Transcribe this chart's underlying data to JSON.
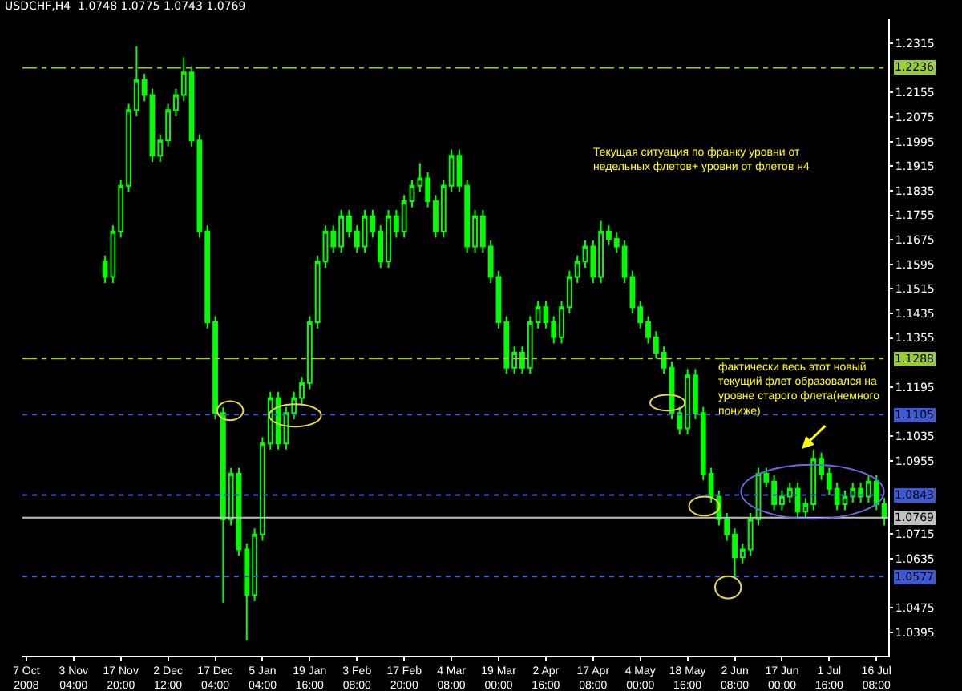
{
  "chart_data": {
    "type": "candlestick",
    "title": "USDCHF,H4  1.0748 1.0775 1.0743 1.0769",
    "color": "#00ff00",
    "categories": [
      "7 Oct 2008",
      null,
      null,
      null,
      null,
      null,
      "3 Nov 04:00",
      null,
      null,
      null,
      null,
      null,
      "17 Nov 20:00",
      null,
      null,
      null,
      null,
      null,
      "2 Dec 12:00",
      null,
      null,
      null,
      null,
      null,
      "17 Dec 04:00",
      null,
      null,
      null,
      null,
      null,
      "5 Jan 04:00",
      null,
      null,
      null,
      null,
      null,
      "19 Jan 16:00",
      null,
      null,
      null,
      null,
      null,
      "3 Feb 08:00",
      null,
      null,
      null,
      null,
      null,
      "17 Feb 20:00",
      null,
      null,
      null,
      null,
      null,
      "4 Mar 08:00",
      null,
      null,
      null,
      null,
      null,
      "19 Mar 00:00",
      null,
      null,
      null,
      null,
      null,
      "2 Apr 16:00",
      null,
      null,
      null,
      null,
      null,
      "17 Apr 08:00",
      null,
      null,
      null,
      null,
      null,
      "4 May 00:00",
      null,
      null,
      null,
      null,
      null,
      "18 May 16:00",
      null,
      null,
      null,
      null,
      null,
      "2 Jun 08:00",
      null,
      null,
      null,
      null,
      null,
      "17 Jun 00:00",
      null,
      null,
      null,
      null,
      null,
      "1 Jul 16:00",
      null,
      null,
      null,
      null,
      null,
      "16 Jul 08:00",
      null
    ],
    "ohlc": [
      null,
      null,
      null,
      null,
      null,
      null,
      null,
      null,
      null,
      null,
      [
        1.1604,
        1.1624,
        1.1534,
        1.1554
      ],
      [
        1.1554,
        1.1722,
        1.1534,
        1.1702
      ],
      [
        1.1702,
        1.1871,
        1.1682,
        1.1851
      ],
      [
        1.1851,
        1.2118,
        1.1831,
        1.2098
      ],
      [
        1.2098,
        1.2305,
        1.2078,
        1.2196
      ],
      [
        1.2196,
        1.2216,
        1.2127,
        1.2147
      ],
      [
        1.2147,
        1.2167,
        1.1929,
        1.1949
      ],
      [
        1.1949,
        1.2019,
        1.1929,
        1.1999
      ],
      [
        1.1999,
        1.2118,
        1.1979,
        1.2098
      ],
      [
        1.2098,
        1.2167,
        1.2078,
        1.2147
      ],
      [
        1.2147,
        1.227,
        1.2127,
        1.2221
      ],
      [
        1.2221,
        1.2241,
        1.1979,
        1.1999
      ],
      [
        1.1999,
        1.2019,
        1.1682,
        1.1702
      ],
      [
        1.1702,
        1.1722,
        1.1386,
        1.1406
      ],
      [
        1.1406,
        1.1426,
        1.109,
        1.111
      ],
      [
        1.111,
        1.113,
        1.0492,
        1.0764
      ],
      [
        1.0764,
        1.0932,
        1.0744,
        1.0912
      ],
      [
        1.0912,
        1.0932,
        1.0645,
        1.0665
      ],
      [
        1.0665,
        1.0685,
        1.0369,
        1.0517
      ],
      [
        1.0517,
        1.0734,
        1.0497,
        1.0714
      ],
      [
        1.0714,
        1.1031,
        1.0694,
        1.1011
      ],
      [
        1.1011,
        1.1179,
        1.0991,
        1.1159
      ],
      [
        1.1159,
        1.1179,
        1.0991,
        1.1011
      ],
      [
        1.1011,
        1.113,
        1.0991,
        1.111
      ],
      [
        1.111,
        1.1179,
        1.109,
        1.1159
      ],
      [
        1.1159,
        1.1228,
        1.1139,
        1.1208
      ],
      [
        1.1208,
        1.1426,
        1.1188,
        1.1406
      ],
      [
        1.1406,
        1.1624,
        1.1386,
        1.1604
      ],
      [
        1.1604,
        1.1722,
        1.1584,
        1.1702
      ],
      [
        1.1702,
        1.1722,
        1.1633,
        1.1653
      ],
      [
        1.1653,
        1.1772,
        1.1633,
        1.1752
      ],
      [
        1.1752,
        1.1772,
        1.1682,
        1.1702
      ],
      [
        1.1702,
        1.1722,
        1.1633,
        1.1653
      ],
      [
        1.1653,
        1.1772,
        1.1633,
        1.1752
      ],
      [
        1.1752,
        1.1772,
        1.1682,
        1.1702
      ],
      [
        1.1702,
        1.1722,
        1.1584,
        1.1604
      ],
      [
        1.1604,
        1.1772,
        1.1584,
        1.1752
      ],
      [
        1.1752,
        1.1772,
        1.1682,
        1.1702
      ],
      [
        1.1702,
        1.1821,
        1.1682,
        1.1801
      ],
      [
        1.1801,
        1.1871,
        1.1781,
        1.1851
      ],
      [
        1.1851,
        1.1925,
        1.1831,
        1.1875
      ],
      [
        1.1875,
        1.1895,
        1.1781,
        1.1801
      ],
      [
        1.1801,
        1.1821,
        1.1682,
        1.1702
      ],
      [
        1.1702,
        1.1871,
        1.1682,
        1.1851
      ],
      [
        1.1851,
        1.1969,
        1.1831,
        1.1949
      ],
      [
        1.1949,
        1.1969,
        1.1831,
        1.1851
      ],
      [
        1.1851,
        1.1871,
        1.1633,
        1.1653
      ],
      [
        1.1653,
        1.1772,
        1.1633,
        1.1752
      ],
      [
        1.1752,
        1.1772,
        1.1633,
        1.1653
      ],
      [
        1.1653,
        1.1673,
        1.1534,
        1.1554
      ],
      [
        1.1554,
        1.1574,
        1.1386,
        1.1406
      ],
      [
        1.1406,
        1.1426,
        1.1238,
        1.1258
      ],
      [
        1.1258,
        1.1327,
        1.1238,
        1.1307
      ],
      [
        1.1307,
        1.1327,
        1.1238,
        1.1258
      ],
      [
        1.1258,
        1.1426,
        1.1238,
        1.1406
      ],
      [
        1.1406,
        1.1475,
        1.1386,
        1.1455
      ],
      [
        1.1455,
        1.1475,
        1.1386,
        1.1406
      ],
      [
        1.1406,
        1.1426,
        1.1337,
        1.1357
      ],
      [
        1.1357,
        1.1475,
        1.1337,
        1.1455
      ],
      [
        1.1455,
        1.1574,
        1.1435,
        1.1554
      ],
      [
        1.1554,
        1.1624,
        1.1534,
        1.1604
      ],
      [
        1.1604,
        1.1673,
        1.1584,
        1.1653
      ],
      [
        1.1653,
        1.1673,
        1.1534,
        1.1554
      ],
      [
        1.1554,
        1.1737,
        1.1534,
        1.1702
      ],
      [
        1.1702,
        1.1722,
        1.1658,
        1.1678
      ],
      [
        1.1678,
        1.1698,
        1.1633,
        1.1653
      ],
      [
        1.1653,
        1.1673,
        1.1534,
        1.1554
      ],
      [
        1.1554,
        1.1574,
        1.1435,
        1.1455
      ],
      [
        1.1455,
        1.1475,
        1.1386,
        1.1406
      ],
      [
        1.1406,
        1.1426,
        1.1337,
        1.1357
      ],
      [
        1.1357,
        1.1377,
        1.1287,
        1.1307
      ],
      [
        1.1307,
        1.1327,
        1.1238,
        1.1258
      ],
      [
        1.1258,
        1.1278,
        1.109,
        1.111
      ],
      [
        1.111,
        1.113,
        1.104,
        1.106
      ],
      [
        1.106,
        1.1253,
        1.104,
        1.1233
      ],
      [
        1.1233,
        1.1253,
        1.109,
        1.111
      ],
      [
        1.111,
        1.113,
        1.0892,
        1.0912
      ],
      [
        1.0912,
        1.0932,
        1.0818,
        1.0838
      ],
      [
        1.0838,
        1.0858,
        1.0744,
        1.0764
      ],
      [
        1.0764,
        1.0784,
        1.0694,
        1.0714
      ],
      [
        1.0714,
        1.0734,
        1.0576,
        1.064
      ],
      [
        1.064,
        1.0685,
        1.062,
        1.0665
      ],
      [
        1.0665,
        1.0784,
        1.0645,
        1.0764
      ],
      [
        1.0764,
        1.0932,
        1.0744,
        1.0912
      ],
      [
        1.0912,
        1.0932,
        1.0867,
        1.0887
      ],
      [
        1.0887,
        1.0907,
        1.0793,
        1.0813
      ],
      [
        1.0813,
        1.0858,
        1.0793,
        1.0838
      ],
      [
        1.0838,
        1.0883,
        1.0818,
        1.0863
      ],
      [
        1.0863,
        1.0883,
        1.0769,
        1.0789
      ],
      [
        1.0789,
        1.0833,
        1.0769,
        1.0813
      ],
      [
        1.0813,
        1.099,
        1.0793,
        1.0961
      ],
      [
        1.0961,
        1.0981,
        1.0892,
        1.0912
      ],
      [
        1.0912,
        1.0932,
        1.0843,
        1.0863
      ],
      [
        1.0863,
        1.0883,
        1.0793,
        1.0813
      ],
      [
        1.0813,
        1.0858,
        1.0793,
        1.0838
      ],
      [
        1.0838,
        1.0883,
        1.0818,
        1.0863
      ],
      [
        1.0863,
        1.0883,
        1.0818,
        1.0838
      ],
      [
        1.0838,
        1.0907,
        1.0818,
        1.0887
      ],
      [
        1.0887,
        1.0907,
        1.0793,
        1.0813
      ],
      [
        1.0813,
        1.0833,
        1.0744,
        1.0769
      ]
    ],
    "ylim": [
      1.0319,
      1.2394
    ],
    "yticks": [
      1.2315,
      1.2155,
      1.2075,
      1.1995,
      1.1915,
      1.1835,
      1.1755,
      1.1675,
      1.1595,
      1.1515,
      1.1435,
      1.1355,
      1.1195,
      1.1035,
      1.0955,
      1.0715,
      1.0635,
      1.0475,
      1.0395
    ],
    "ref_lines": [
      {
        "axis": "y",
        "value": 1.2236,
        "label": "1.2236",
        "color": "#9acd32",
        "line_style": "dashed"
      },
      {
        "axis": "y",
        "value": 1.1288,
        "label": "1.1288",
        "color": "#9acd32",
        "line_style": "dashed"
      },
      {
        "axis": "y",
        "value": 1.1105,
        "label": "1.1105",
        "color": "#3c5ad8",
        "line_style": "dotted"
      },
      {
        "axis": "y",
        "value": 1.0843,
        "label": "1.0843",
        "color": "#3c5ad8",
        "line_style": "dotted"
      },
      {
        "axis": "y",
        "value": 1.0769,
        "label": "1.0769",
        "color": "#c0c0c0",
        "line_style": "solid"
      },
      {
        "axis": "y",
        "value": 1.0577,
        "label": "1.0577",
        "color": "#3c5ad8",
        "line_style": "dotted"
      }
    ],
    "annotations": [
      "Текущая ситуация по франку уровни от\nнедельных флетов+ уровни от флетов н4",
      "фактически весь этот новый\nтекущий флет образовался на\nуровне старого флета(немного\nпониже)"
    ]
  }
}
